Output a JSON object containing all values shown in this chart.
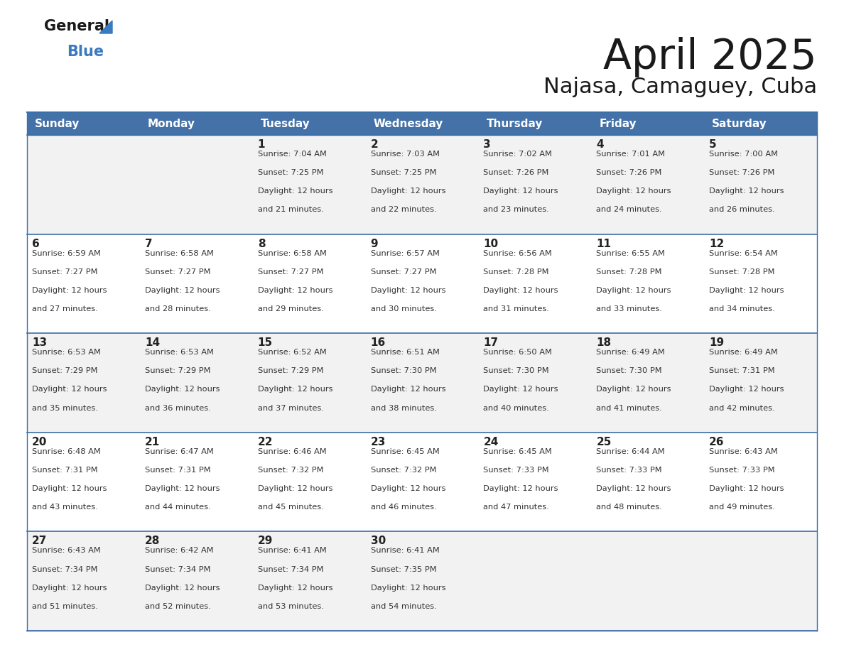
{
  "title": "April 2025",
  "subtitle": "Najasa, Camaguey, Cuba",
  "header_bg": "#4472a8",
  "header_text_color": "#ffffff",
  "row_bg_odd": "#f2f2f2",
  "row_bg_even": "#ffffff",
  "border_color": "#3a6fa8",
  "text_color": "#333333",
  "day_num_color": "#222222",
  "title_color": "#1a1a1a",
  "logo_general_color": "#1a1a1a",
  "logo_blue_color": "#3a7abf",
  "logo_triangle_color": "#3a7abf",
  "days_of_week": [
    "Sunday",
    "Monday",
    "Tuesday",
    "Wednesday",
    "Thursday",
    "Friday",
    "Saturday"
  ],
  "calendar_data": [
    [
      {
        "day": "",
        "lines": []
      },
      {
        "day": "",
        "lines": []
      },
      {
        "day": "1",
        "lines": [
          "Sunrise: 7:04 AM",
          "Sunset: 7:25 PM",
          "Daylight: 12 hours",
          "and 21 minutes."
        ]
      },
      {
        "day": "2",
        "lines": [
          "Sunrise: 7:03 AM",
          "Sunset: 7:25 PM",
          "Daylight: 12 hours",
          "and 22 minutes."
        ]
      },
      {
        "day": "3",
        "lines": [
          "Sunrise: 7:02 AM",
          "Sunset: 7:26 PM",
          "Daylight: 12 hours",
          "and 23 minutes."
        ]
      },
      {
        "day": "4",
        "lines": [
          "Sunrise: 7:01 AM",
          "Sunset: 7:26 PM",
          "Daylight: 12 hours",
          "and 24 minutes."
        ]
      },
      {
        "day": "5",
        "lines": [
          "Sunrise: 7:00 AM",
          "Sunset: 7:26 PM",
          "Daylight: 12 hours",
          "and 26 minutes."
        ]
      }
    ],
    [
      {
        "day": "6",
        "lines": [
          "Sunrise: 6:59 AM",
          "Sunset: 7:27 PM",
          "Daylight: 12 hours",
          "and 27 minutes."
        ]
      },
      {
        "day": "7",
        "lines": [
          "Sunrise: 6:58 AM",
          "Sunset: 7:27 PM",
          "Daylight: 12 hours",
          "and 28 minutes."
        ]
      },
      {
        "day": "8",
        "lines": [
          "Sunrise: 6:58 AM",
          "Sunset: 7:27 PM",
          "Daylight: 12 hours",
          "and 29 minutes."
        ]
      },
      {
        "day": "9",
        "lines": [
          "Sunrise: 6:57 AM",
          "Sunset: 7:27 PM",
          "Daylight: 12 hours",
          "and 30 minutes."
        ]
      },
      {
        "day": "10",
        "lines": [
          "Sunrise: 6:56 AM",
          "Sunset: 7:28 PM",
          "Daylight: 12 hours",
          "and 31 minutes."
        ]
      },
      {
        "day": "11",
        "lines": [
          "Sunrise: 6:55 AM",
          "Sunset: 7:28 PM",
          "Daylight: 12 hours",
          "and 33 minutes."
        ]
      },
      {
        "day": "12",
        "lines": [
          "Sunrise: 6:54 AM",
          "Sunset: 7:28 PM",
          "Daylight: 12 hours",
          "and 34 minutes."
        ]
      }
    ],
    [
      {
        "day": "13",
        "lines": [
          "Sunrise: 6:53 AM",
          "Sunset: 7:29 PM",
          "Daylight: 12 hours",
          "and 35 minutes."
        ]
      },
      {
        "day": "14",
        "lines": [
          "Sunrise: 6:53 AM",
          "Sunset: 7:29 PM",
          "Daylight: 12 hours",
          "and 36 minutes."
        ]
      },
      {
        "day": "15",
        "lines": [
          "Sunrise: 6:52 AM",
          "Sunset: 7:29 PM",
          "Daylight: 12 hours",
          "and 37 minutes."
        ]
      },
      {
        "day": "16",
        "lines": [
          "Sunrise: 6:51 AM",
          "Sunset: 7:30 PM",
          "Daylight: 12 hours",
          "and 38 minutes."
        ]
      },
      {
        "day": "17",
        "lines": [
          "Sunrise: 6:50 AM",
          "Sunset: 7:30 PM",
          "Daylight: 12 hours",
          "and 40 minutes."
        ]
      },
      {
        "day": "18",
        "lines": [
          "Sunrise: 6:49 AM",
          "Sunset: 7:30 PM",
          "Daylight: 12 hours",
          "and 41 minutes."
        ]
      },
      {
        "day": "19",
        "lines": [
          "Sunrise: 6:49 AM",
          "Sunset: 7:31 PM",
          "Daylight: 12 hours",
          "and 42 minutes."
        ]
      }
    ],
    [
      {
        "day": "20",
        "lines": [
          "Sunrise: 6:48 AM",
          "Sunset: 7:31 PM",
          "Daylight: 12 hours",
          "and 43 minutes."
        ]
      },
      {
        "day": "21",
        "lines": [
          "Sunrise: 6:47 AM",
          "Sunset: 7:31 PM",
          "Daylight: 12 hours",
          "and 44 minutes."
        ]
      },
      {
        "day": "22",
        "lines": [
          "Sunrise: 6:46 AM",
          "Sunset: 7:32 PM",
          "Daylight: 12 hours",
          "and 45 minutes."
        ]
      },
      {
        "day": "23",
        "lines": [
          "Sunrise: 6:45 AM",
          "Sunset: 7:32 PM",
          "Daylight: 12 hours",
          "and 46 minutes."
        ]
      },
      {
        "day": "24",
        "lines": [
          "Sunrise: 6:45 AM",
          "Sunset: 7:33 PM",
          "Daylight: 12 hours",
          "and 47 minutes."
        ]
      },
      {
        "day": "25",
        "lines": [
          "Sunrise: 6:44 AM",
          "Sunset: 7:33 PM",
          "Daylight: 12 hours",
          "and 48 minutes."
        ]
      },
      {
        "day": "26",
        "lines": [
          "Sunrise: 6:43 AM",
          "Sunset: 7:33 PM",
          "Daylight: 12 hours",
          "and 49 minutes."
        ]
      }
    ],
    [
      {
        "day": "27",
        "lines": [
          "Sunrise: 6:43 AM",
          "Sunset: 7:34 PM",
          "Daylight: 12 hours",
          "and 51 minutes."
        ]
      },
      {
        "day": "28",
        "lines": [
          "Sunrise: 6:42 AM",
          "Sunset: 7:34 PM",
          "Daylight: 12 hours",
          "and 52 minutes."
        ]
      },
      {
        "day": "29",
        "lines": [
          "Sunrise: 6:41 AM",
          "Sunset: 7:34 PM",
          "Daylight: 12 hours",
          "and 53 minutes."
        ]
      },
      {
        "day": "30",
        "lines": [
          "Sunrise: 6:41 AM",
          "Sunset: 7:35 PM",
          "Daylight: 12 hours",
          "and 54 minutes."
        ]
      },
      {
        "day": "",
        "lines": []
      },
      {
        "day": "",
        "lines": []
      },
      {
        "day": "",
        "lines": []
      }
    ]
  ]
}
